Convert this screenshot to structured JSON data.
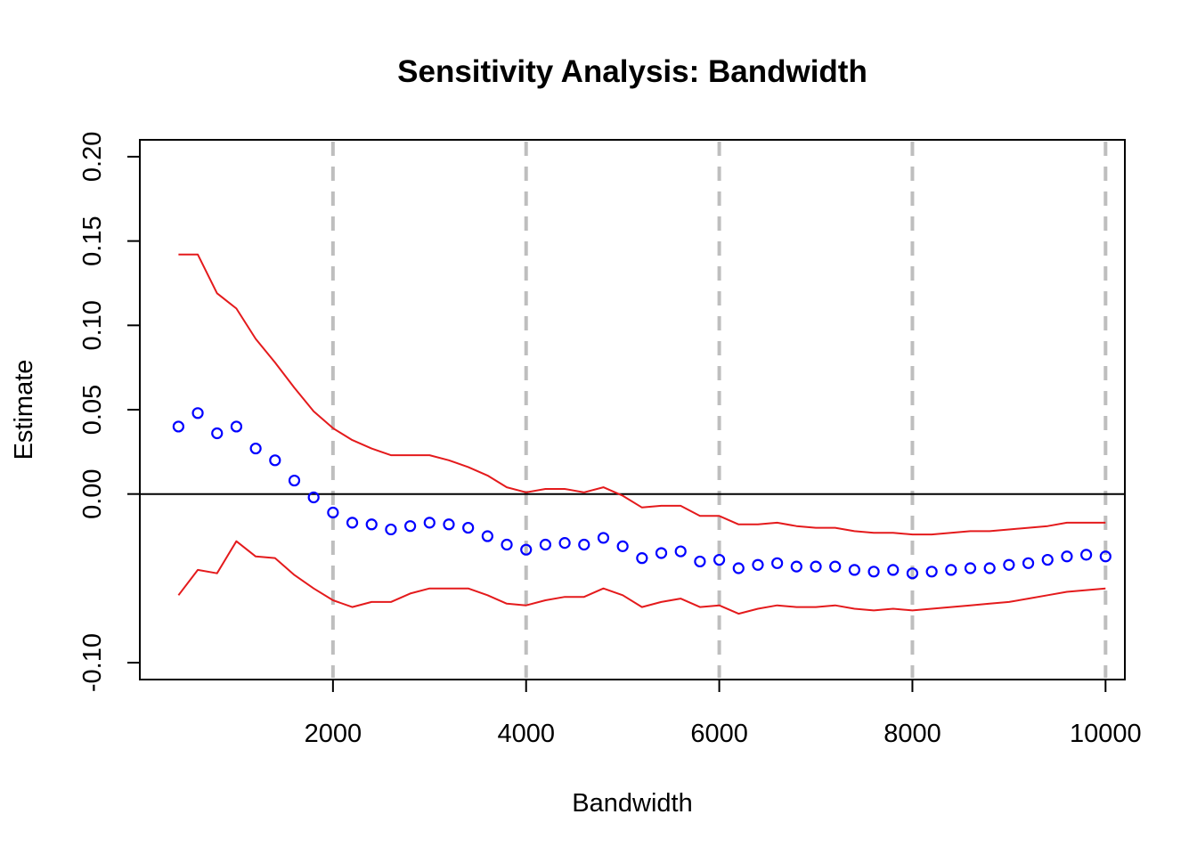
{
  "chart_data": {
    "type": "scatter",
    "title": "Sensitivity Analysis: Bandwidth",
    "xlabel": "Bandwidth",
    "ylabel": "Estimate",
    "xlim": [
      0,
      10200
    ],
    "ylim": [
      -0.11,
      0.21
    ],
    "x_ticks": [
      2000,
      4000,
      6000,
      8000,
      10000
    ],
    "x_tick_labels": [
      "2000",
      "4000",
      "6000",
      "8000",
      "10000"
    ],
    "y_ticks": [
      -0.1,
      0.0,
      0.05,
      0.1,
      0.15,
      0.2
    ],
    "y_tick_labels": [
      "-0.10",
      "0.00",
      "0.05",
      "0.10",
      "0.15",
      "0.20"
    ],
    "reference_lines": {
      "horizontal": [
        0.0
      ],
      "vertical_dashed": [
        2000,
        4000,
        6000,
        8000,
        10000
      ]
    },
    "colors": {
      "estimate": "#0000ff",
      "ci": "#e41a1c",
      "dashed": "#bebebe",
      "zero_line": "#000000"
    },
    "x": [
      400,
      600,
      800,
      1000,
      1200,
      1400,
      1600,
      1800,
      2000,
      2200,
      2400,
      2600,
      2800,
      3000,
      3200,
      3400,
      3600,
      3800,
      4000,
      4200,
      4400,
      4600,
      4800,
      5000,
      5200,
      5400,
      5600,
      5800,
      6000,
      6200,
      6400,
      6600,
      6800,
      7000,
      7200,
      7400,
      7600,
      7800,
      8000,
      8200,
      8400,
      8600,
      8800,
      9000,
      9200,
      9400,
      9600,
      9800,
      10000
    ],
    "series": [
      {
        "role": "estimate",
        "style": "points",
        "values": [
          0.04,
          0.048,
          0.036,
          0.04,
          0.027,
          0.02,
          0.008,
          -0.002,
          -0.011,
          -0.017,
          -0.018,
          -0.021,
          -0.019,
          -0.017,
          -0.018,
          -0.02,
          -0.025,
          -0.03,
          -0.033,
          -0.03,
          -0.029,
          -0.03,
          -0.026,
          -0.031,
          -0.038,
          -0.035,
          -0.034,
          -0.04,
          -0.039,
          -0.044,
          -0.042,
          -0.041,
          -0.043,
          -0.043,
          -0.043,
          -0.045,
          -0.046,
          -0.045,
          -0.047,
          -0.046,
          -0.045,
          -0.044,
          -0.044,
          -0.042,
          -0.041,
          -0.039,
          -0.037,
          -0.036,
          -0.037
        ]
      },
      {
        "role": "ci-upper",
        "style": "line",
        "values": [
          0.142,
          0.142,
          0.119,
          0.11,
          0.092,
          0.078,
          0.063,
          0.049,
          0.039,
          0.032,
          0.027,
          0.023,
          0.023,
          0.023,
          0.02,
          0.016,
          0.011,
          0.004,
          0.001,
          0.003,
          0.003,
          0.001,
          0.004,
          -0.001,
          -0.008,
          -0.007,
          -0.007,
          -0.013,
          -0.013,
          -0.018,
          -0.018,
          -0.017,
          -0.019,
          -0.02,
          -0.02,
          -0.022,
          -0.023,
          -0.023,
          -0.024,
          -0.024,
          -0.023,
          -0.022,
          -0.022,
          -0.021,
          -0.02,
          -0.019,
          -0.017,
          -0.017,
          -0.017
        ]
      },
      {
        "role": "ci-lower",
        "style": "line",
        "values": [
          -0.06,
          -0.045,
          -0.047,
          -0.028,
          -0.037,
          -0.038,
          -0.048,
          -0.056,
          -0.063,
          -0.067,
          -0.064,
          -0.064,
          -0.059,
          -0.056,
          -0.056,
          -0.056,
          -0.06,
          -0.065,
          -0.066,
          -0.063,
          -0.061,
          -0.061,
          -0.056,
          -0.06,
          -0.067,
          -0.064,
          -0.062,
          -0.067,
          -0.066,
          -0.071,
          -0.068,
          -0.066,
          -0.067,
          -0.067,
          -0.066,
          -0.068,
          -0.069,
          -0.068,
          -0.069,
          -0.068,
          -0.067,
          -0.066,
          -0.065,
          -0.064,
          -0.062,
          -0.06,
          -0.058,
          -0.057,
          -0.056
        ]
      }
    ]
  }
}
